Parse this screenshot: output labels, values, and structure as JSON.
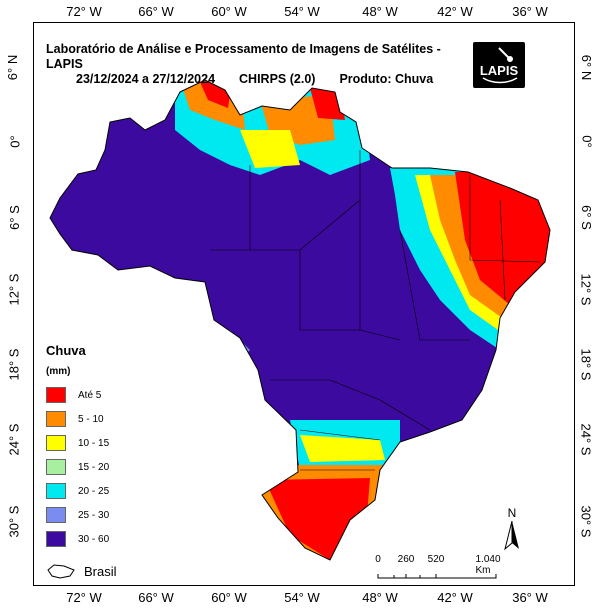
{
  "title_line1": "Laboratório de Análise e Processamento de Imagens de Satélites - LAPIS",
  "date_range": "23/12/2024  a 27/12/2024",
  "dataset": "CHIRPS (2.0)",
  "product": "Produto: Chuva",
  "logo_text": "LAPIS",
  "top_ticks": [
    "72° W",
    "66° W",
    "60° W",
    "54° W",
    "48° W",
    "42° W",
    "36° W"
  ],
  "bottom_ticks": [
    "72° W",
    "66° W",
    "60° W",
    "54° W",
    "48° W",
    "42° W",
    "36° W"
  ],
  "lat_ticks": [
    "6° N",
    "0°",
    "6° S",
    "12° S",
    "18° S",
    "24° S",
    "30° S"
  ],
  "legend": {
    "title": "Chuva",
    "unit": "(mm)",
    "items": [
      {
        "label": "Até 5",
        "color": "#ff0000"
      },
      {
        "label": "5 - 10",
        "color": "#ff8c00"
      },
      {
        "label": "10 - 15",
        "color": "#ffff00"
      },
      {
        "label": "15 - 20",
        "color": "#a8f0a0"
      },
      {
        "label": "20 - 25",
        "color": "#00e8f0"
      },
      {
        "label": "25 - 30",
        "color": "#7a8cf0"
      },
      {
        "label": "30 - 60",
        "color": "#3c0a9e"
      }
    ]
  },
  "brasil_label": "Brasil",
  "scale": {
    "labels": [
      "0",
      "260",
      "520",
      "1.040 Km"
    ]
  },
  "north_label": "N"
}
